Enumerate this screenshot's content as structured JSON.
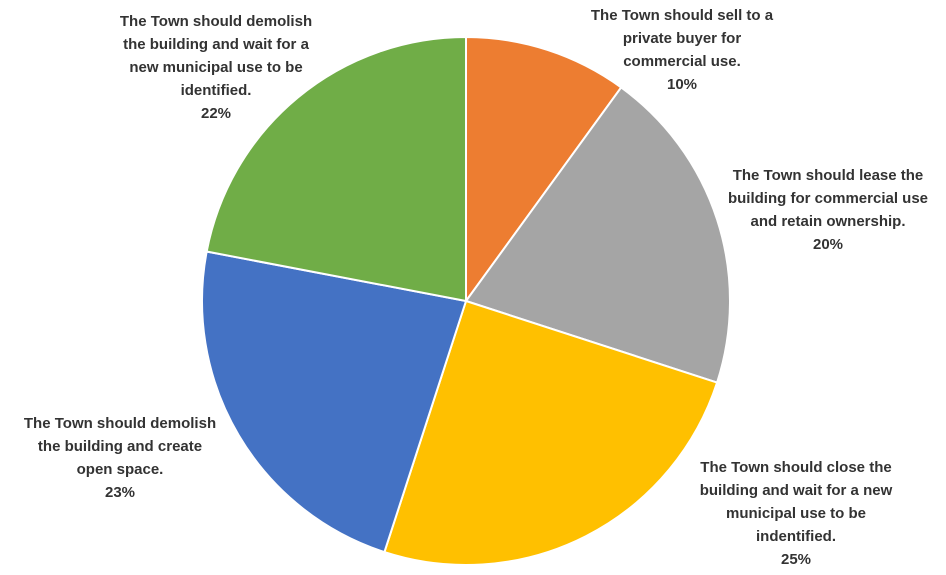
{
  "chart_data": {
    "type": "pie",
    "start_angle_deg": 0,
    "direction": "clockwise",
    "slices": [
      {
        "label_lines": [
          "The Town should sell to a",
          "private buyer for",
          "commercial use."
        ],
        "pct_label": "10%",
        "value": 10,
        "color": "#ED7D31"
      },
      {
        "label_lines": [
          "The Town should lease the",
          "building for commercial use",
          "and retain ownership."
        ],
        "pct_label": "20%",
        "value": 20,
        "color": "#A5A5A5"
      },
      {
        "label_lines": [
          "The Town should close the",
          "building and wait for a new",
          "municipal use to be",
          "indentified."
        ],
        "pct_label": "25%",
        "value": 25,
        "color": "#FFC000"
      },
      {
        "label_lines": [
          "The Town should demolish",
          "the building and create",
          "open space."
        ],
        "pct_label": "23%",
        "value": 23,
        "color": "#4472C4"
      },
      {
        "label_lines": [
          "The Town should demolish",
          "the building and wait for a",
          "new municipal use to be",
          "identified."
        ],
        "pct_label": "22%",
        "value": 22,
        "color": "#70AD47"
      }
    ]
  }
}
